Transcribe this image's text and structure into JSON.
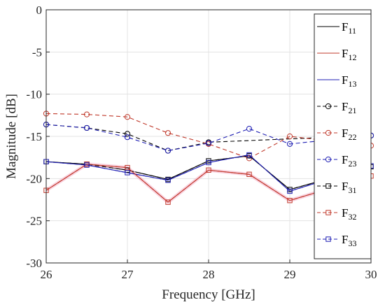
{
  "chart_data": {
    "type": "line",
    "xlabel": "Frequency [GHz]",
    "ylabel": "Magnitude [dB]",
    "xlim": [
      26,
      30
    ],
    "ylim": [
      -30,
      0
    ],
    "x_ticks": [
      "26",
      "27",
      "28",
      "29",
      "30"
    ],
    "y_ticks": [
      "0",
      "-5",
      "-10",
      "-15",
      "-20",
      "-25",
      "-30"
    ],
    "grid": true,
    "legend_position": "top-right",
    "x": [
      26,
      26.5,
      27,
      27.5,
      28,
      28.5,
      29,
      30
    ],
    "series": [
      {
        "name": "F",
        "sub": "11",
        "color": "#000000",
        "dash": "solid",
        "marker": "none",
        "values": [
          -18.0,
          -18.3,
          -19.0,
          -20.1,
          -17.9,
          -17.3,
          -21.3,
          -18.6
        ]
      },
      {
        "name": "F",
        "sub": "12",
        "color": "#c0392b",
        "dash": "solid",
        "marker": "none",
        "values": [
          -21.4,
          -18.3,
          -18.7,
          -22.8,
          -19.0,
          -19.5,
          -22.6,
          -19.7
        ]
      },
      {
        "name": "F",
        "sub": "13",
        "color": "#1f1fb4",
        "dash": "solid",
        "marker": "none",
        "values": [
          -18.0,
          -18.4,
          -19.3,
          -20.2,
          -18.1,
          -17.2,
          -21.5,
          -18.5
        ]
      },
      {
        "name": "F",
        "sub": "21",
        "color": "#000000",
        "dash": "dashed",
        "marker": "circle",
        "values": [
          -13.6,
          -14.0,
          -14.7,
          -16.7,
          -15.7,
          null,
          null,
          -14.9
        ]
      },
      {
        "name": "F",
        "sub": "22",
        "color": "#c0392b",
        "dash": "dashed",
        "marker": "circle",
        "values": [
          -12.3,
          -12.4,
          -12.7,
          -14.6,
          -15.9,
          -17.6,
          -15.0,
          -16.1
        ]
      },
      {
        "name": "F",
        "sub": "23",
        "color": "#1f1fb4",
        "dash": "dashed",
        "marker": "circle",
        "values": [
          -13.6,
          -14.0,
          -15.1,
          -16.7,
          -15.8,
          -14.1,
          -15.9,
          -14.9
        ]
      },
      {
        "name": "F",
        "sub": "31",
        "color": "#000000",
        "dash": "dashed",
        "marker": "square",
        "values": [
          -18.0,
          -18.3,
          -19.0,
          -20.1,
          -17.9,
          -17.3,
          -21.3,
          -18.6
        ]
      },
      {
        "name": "F",
        "sub": "32",
        "color": "#c0392b",
        "dash": "dashed",
        "marker": "square",
        "values": [
          -21.4,
          -18.3,
          -18.7,
          -22.8,
          -19.0,
          -19.5,
          -22.6,
          -19.7
        ]
      },
      {
        "name": "F",
        "sub": "33",
        "color": "#1f1fb4",
        "dash": "dashed",
        "marker": "square",
        "values": [
          -18.0,
          -18.4,
          -19.3,
          -20.2,
          -18.1,
          -17.2,
          -21.5,
          -18.5
        ]
      }
    ]
  }
}
